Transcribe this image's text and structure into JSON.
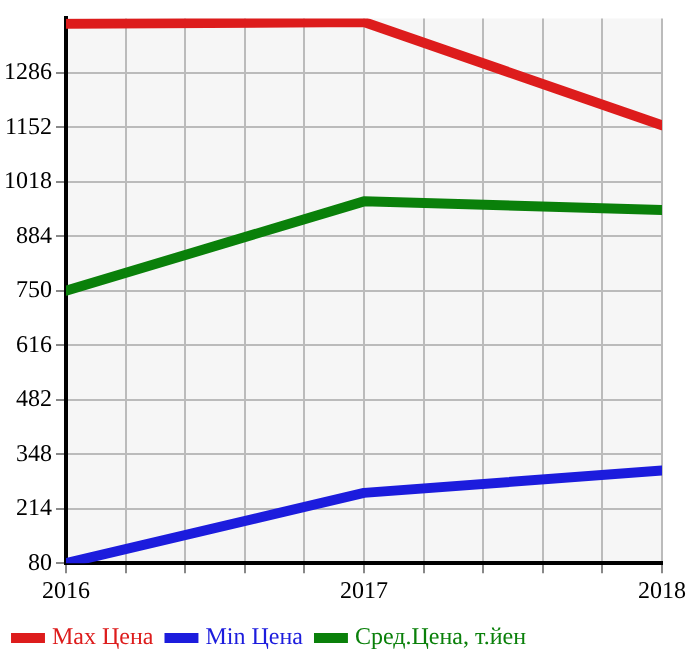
{
  "chart_data": {
    "type": "line",
    "x": [
      2016,
      2017,
      2018
    ],
    "series": [
      {
        "name": "Max Цена",
        "color": "#dd1c1c",
        "values": [
          1407,
          1411,
          1157
        ]
      },
      {
        "name": "Min Цена",
        "color": "#1c1cdd",
        "values": [
          80,
          253,
          308
        ]
      },
      {
        "name": "Сред.Цена, т.йен",
        "color": "#0a800a",
        "values": [
          750,
          970,
          949
        ]
      }
    ],
    "xlim": [
      2016,
      2018
    ],
    "xticks": [
      2016,
      {
        "value": 2016.2,
        "label": null
      },
      {
        "value": 2016.4,
        "label": null
      },
      {
        "value": 2016.6,
        "label": null
      },
      {
        "value": 2016.8,
        "label": null
      },
      2017,
      {
        "value": 2017.2,
        "label": null
      },
      {
        "value": 2017.4,
        "label": null
      },
      {
        "value": 2017.6,
        "label": null
      },
      {
        "value": 2017.8,
        "label": null
      },
      2018
    ],
    "ylim": [
      80,
      1420
    ],
    "yticks": [
      80,
      214,
      348,
      482,
      616,
      750,
      884,
      1018,
      1152,
      1286
    ],
    "grid": true,
    "legend": "bottom",
    "marker": "none",
    "line_style": "solid"
  }
}
